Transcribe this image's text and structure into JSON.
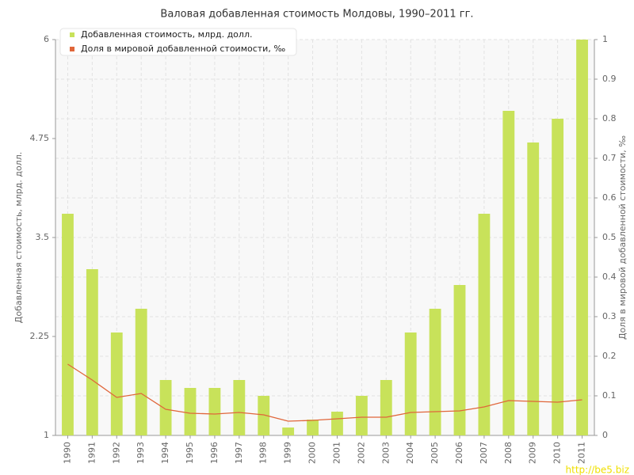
{
  "chart_data": {
    "type": "bar_line",
    "title": "Валовая добавленная стоимость Молдовы, 1990–2011 гг.",
    "y_label": "Добавленная стоимость, млрд. долл.",
    "y2_label": "Доля в мировой добавленной стоимости, ‰",
    "watermark": "http://be5.biz",
    "categories": [
      "1990",
      "1991",
      "1992",
      "1993",
      "1994",
      "1995",
      "1996",
      "1997",
      "1998",
      "1999",
      "2000",
      "2001",
      "2002",
      "2003",
      "2004",
      "2005",
      "2006",
      "2007",
      "2008",
      "2009",
      "2010",
      "2011"
    ],
    "series": [
      {
        "name": "Добавленная стоимость, млрд. долл.",
        "type": "bar",
        "color": "#c8e25a",
        "values": [
          3.8,
          3.1,
          2.3,
          2.6,
          1.7,
          1.6,
          1.6,
          1.7,
          1.5,
          1.1,
          1.2,
          1.3,
          1.5,
          1.7,
          2.3,
          2.6,
          2.9,
          3.8,
          5.1,
          4.7,
          5.0,
          6.0
        ]
      },
      {
        "name": "Доля в мировой добавленной стоимости, ‰",
        "type": "line",
        "color": "#e0663a",
        "axis": "y2",
        "values": [
          0.18,
          0.14,
          0.096,
          0.106,
          0.066,
          0.056,
          0.054,
          0.058,
          0.052,
          0.036,
          0.038,
          0.042,
          0.046,
          0.046,
          0.058,
          0.06,
          0.062,
          0.072,
          0.088,
          0.086,
          0.084,
          0.09
        ]
      }
    ],
    "ylim": [
      1,
      6
    ],
    "yticks": [
      1,
      2.25,
      3.5,
      4.75,
      6
    ],
    "y2lim": [
      0,
      1
    ],
    "y2ticks": [
      0,
      0.1,
      0.2,
      0.3,
      0.4,
      0.5,
      0.6,
      0.7,
      0.8,
      0.9,
      1
    ],
    "grid": true,
    "legend": "top-left"
  }
}
